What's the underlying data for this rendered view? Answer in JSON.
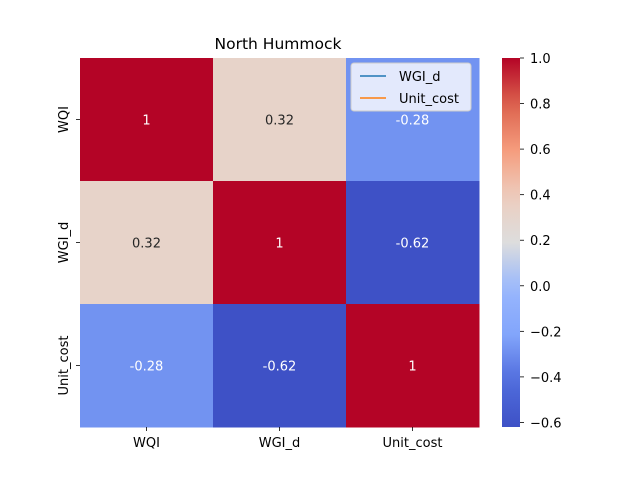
{
  "chart_data": {
    "type": "heatmap",
    "title": "North Hummock",
    "row_labels": [
      "WQI",
      "WGI_d",
      "Unit_cost"
    ],
    "col_labels": [
      "WQI",
      "WGI_d",
      "Unit_cost"
    ],
    "values": [
      [
        1,
        0.32,
        -0.28
      ],
      [
        0.32,
        1,
        -0.62
      ],
      [
        -0.28,
        -0.62,
        1
      ]
    ],
    "cell_text": [
      [
        "1",
        "0.32",
        "-0.28"
      ],
      [
        "0.32",
        "1",
        "-0.62"
      ],
      [
        "-0.28",
        "-0.62",
        "1"
      ]
    ],
    "colormap": "coolwarm",
    "color_range": [
      -0.62,
      1.0
    ],
    "colorbar_ticks": [
      "1.0",
      "0.8",
      "0.6",
      "0.4",
      "0.2",
      "0.0",
      "−0.2",
      "−0.4",
      "−0.6"
    ],
    "colorbar_tick_values": [
      1.0,
      0.8,
      0.6,
      0.4,
      0.2,
      0.0,
      -0.2,
      -0.4,
      -0.6
    ],
    "legend": {
      "placement": "top-right",
      "entries": [
        {
          "name": "WGI_d",
          "color": "#1f77b4"
        },
        {
          "name": "Unit_cost",
          "color": "#ff7f0e"
        }
      ]
    }
  }
}
